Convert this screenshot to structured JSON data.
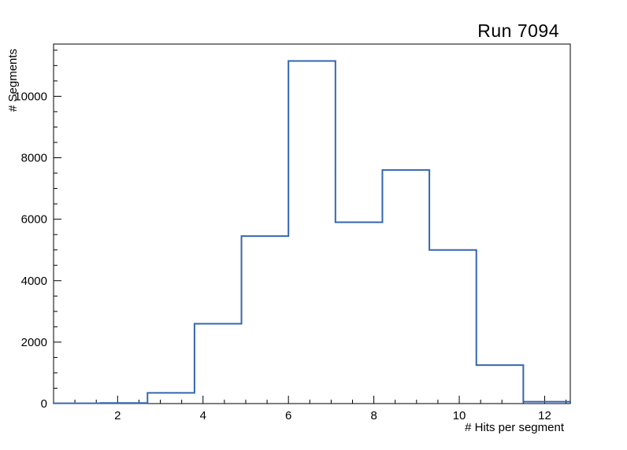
{
  "chart_data": {
    "type": "bar",
    "style": "step-histogram",
    "title": "Run 7094",
    "xlabel": "# Hits per segment",
    "ylabel": "# Segments",
    "xlim": [
      0.5,
      12.6
    ],
    "ylim": [
      0,
      11700
    ],
    "bin_edges": [
      0.5,
      1.6,
      2.7,
      3.8,
      4.9,
      6.0,
      7.1,
      8.2,
      9.3,
      10.4,
      11.5,
      12.6
    ],
    "values": [
      10,
      20,
      350,
      2600,
      5450,
      11150,
      5900,
      7600,
      5000,
      1250,
      60
    ],
    "x_ticks": [
      2,
      4,
      6,
      8,
      10,
      12
    ],
    "y_ticks": [
      0,
      2000,
      4000,
      6000,
      8000,
      10000
    ],
    "x_minor_step": 0.5,
    "y_minor_step": 500,
    "line_color": "#3566b0",
    "frame_color": "#000000",
    "grid": false,
    "legend": false
  }
}
